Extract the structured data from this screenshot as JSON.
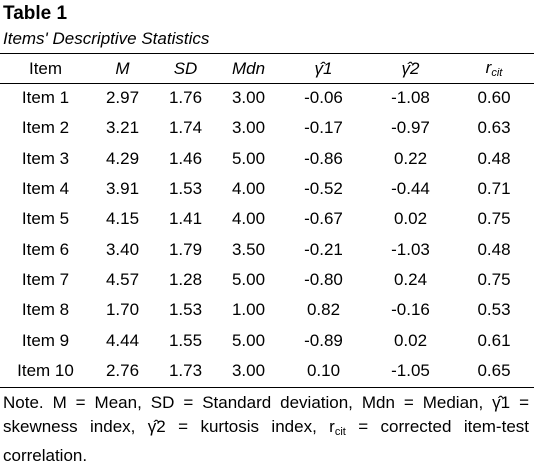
{
  "title": "Table 1",
  "subtitle": "Items' Descriptive Statistics",
  "headers": {
    "item": "Item",
    "m": "M",
    "sd": "SD",
    "mdn": "Mdn",
    "g1": "γ̂1",
    "g2": "γ̂2",
    "rcit_base": "r",
    "rcit_sub": "cit"
  },
  "rows": [
    [
      "Item 1",
      "2.97",
      "1.76",
      "3.00",
      "-0.06",
      "-1.08",
      "0.60"
    ],
    [
      "Item 2",
      "3.21",
      "1.74",
      "3.00",
      "-0.17",
      "-0.97",
      "0.63"
    ],
    [
      "Item 3",
      "4.29",
      "1.46",
      "5.00",
      "-0.86",
      "0.22",
      "0.48"
    ],
    [
      "Item 4",
      "3.91",
      "1.53",
      "4.00",
      "-0.52",
      "-0.44",
      "0.71"
    ],
    [
      "Item 5",
      "4.15",
      "1.41",
      "4.00",
      "-0.67",
      "0.02",
      "0.75"
    ],
    [
      "Item 6",
      "3.40",
      "1.79",
      "3.50",
      "-0.21",
      "-1.03",
      "0.48"
    ],
    [
      "Item 7",
      "4.57",
      "1.28",
      "5.00",
      "-0.80",
      "0.24",
      "0.75"
    ],
    [
      "Item 8",
      "1.70",
      "1.53",
      "1.00",
      "0.82",
      "-0.16",
      "0.53"
    ],
    [
      "Item 9",
      "4.44",
      "1.55",
      "5.00",
      "-0.89",
      "0.02",
      "0.61"
    ],
    [
      "Item 10",
      "2.76",
      "1.73",
      "3.00",
      "0.10",
      "-1.05",
      "0.65"
    ]
  ],
  "note": {
    "text": "Note. M = Mean, SD = Standard deviation, Mdn = Median, γ̂1 = skewness index, γ̂2 = kurtosis index, r",
    "sub": "cit",
    "tail": " = corrected item-test correlation."
  }
}
